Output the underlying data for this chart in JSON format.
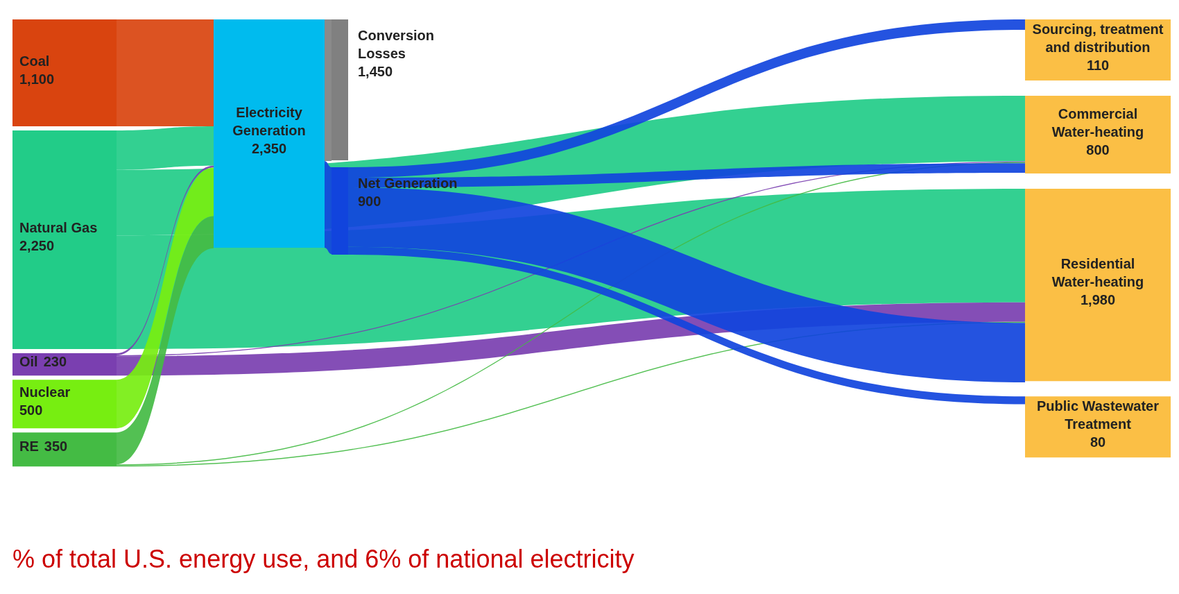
{
  "chart_data": {
    "type": "other",
    "categories": [
      "Coal",
      "Natural Gas",
      "Oil",
      "Nuclear",
      "RE",
      "Electricity Generation",
      "Net Generation",
      "Conversion Losses",
      "Sourcing, treatment and distribution",
      "Commercial Water-heating",
      "Residential Water-heating",
      "Public Wastewater Treatment"
    ],
    "values": [
      1100,
      2250,
      230,
      500,
      350,
      2350,
      900,
      1450,
      110,
      800,
      1980,
      80
    ],
    "value_labels": [
      "1,100",
      "2,250",
      "230",
      "500",
      "350",
      "2,350",
      "900",
      "1,450",
      "110",
      "800",
      "1,980",
      "80"
    ],
    "colors": [
      "#d9440f",
      "#22cc88",
      "#7a3fb0",
      "#77ee11",
      "#44bb44",
      "#00bbee",
      "#1144dd",
      "#808080",
      "#fbbf45",
      "#fbbf45",
      "#fbbf45",
      "#fbbf45"
    ],
    "annotations": [
      "% of total U.S. energy use, and 6% of national electricity"
    ]
  }
}
